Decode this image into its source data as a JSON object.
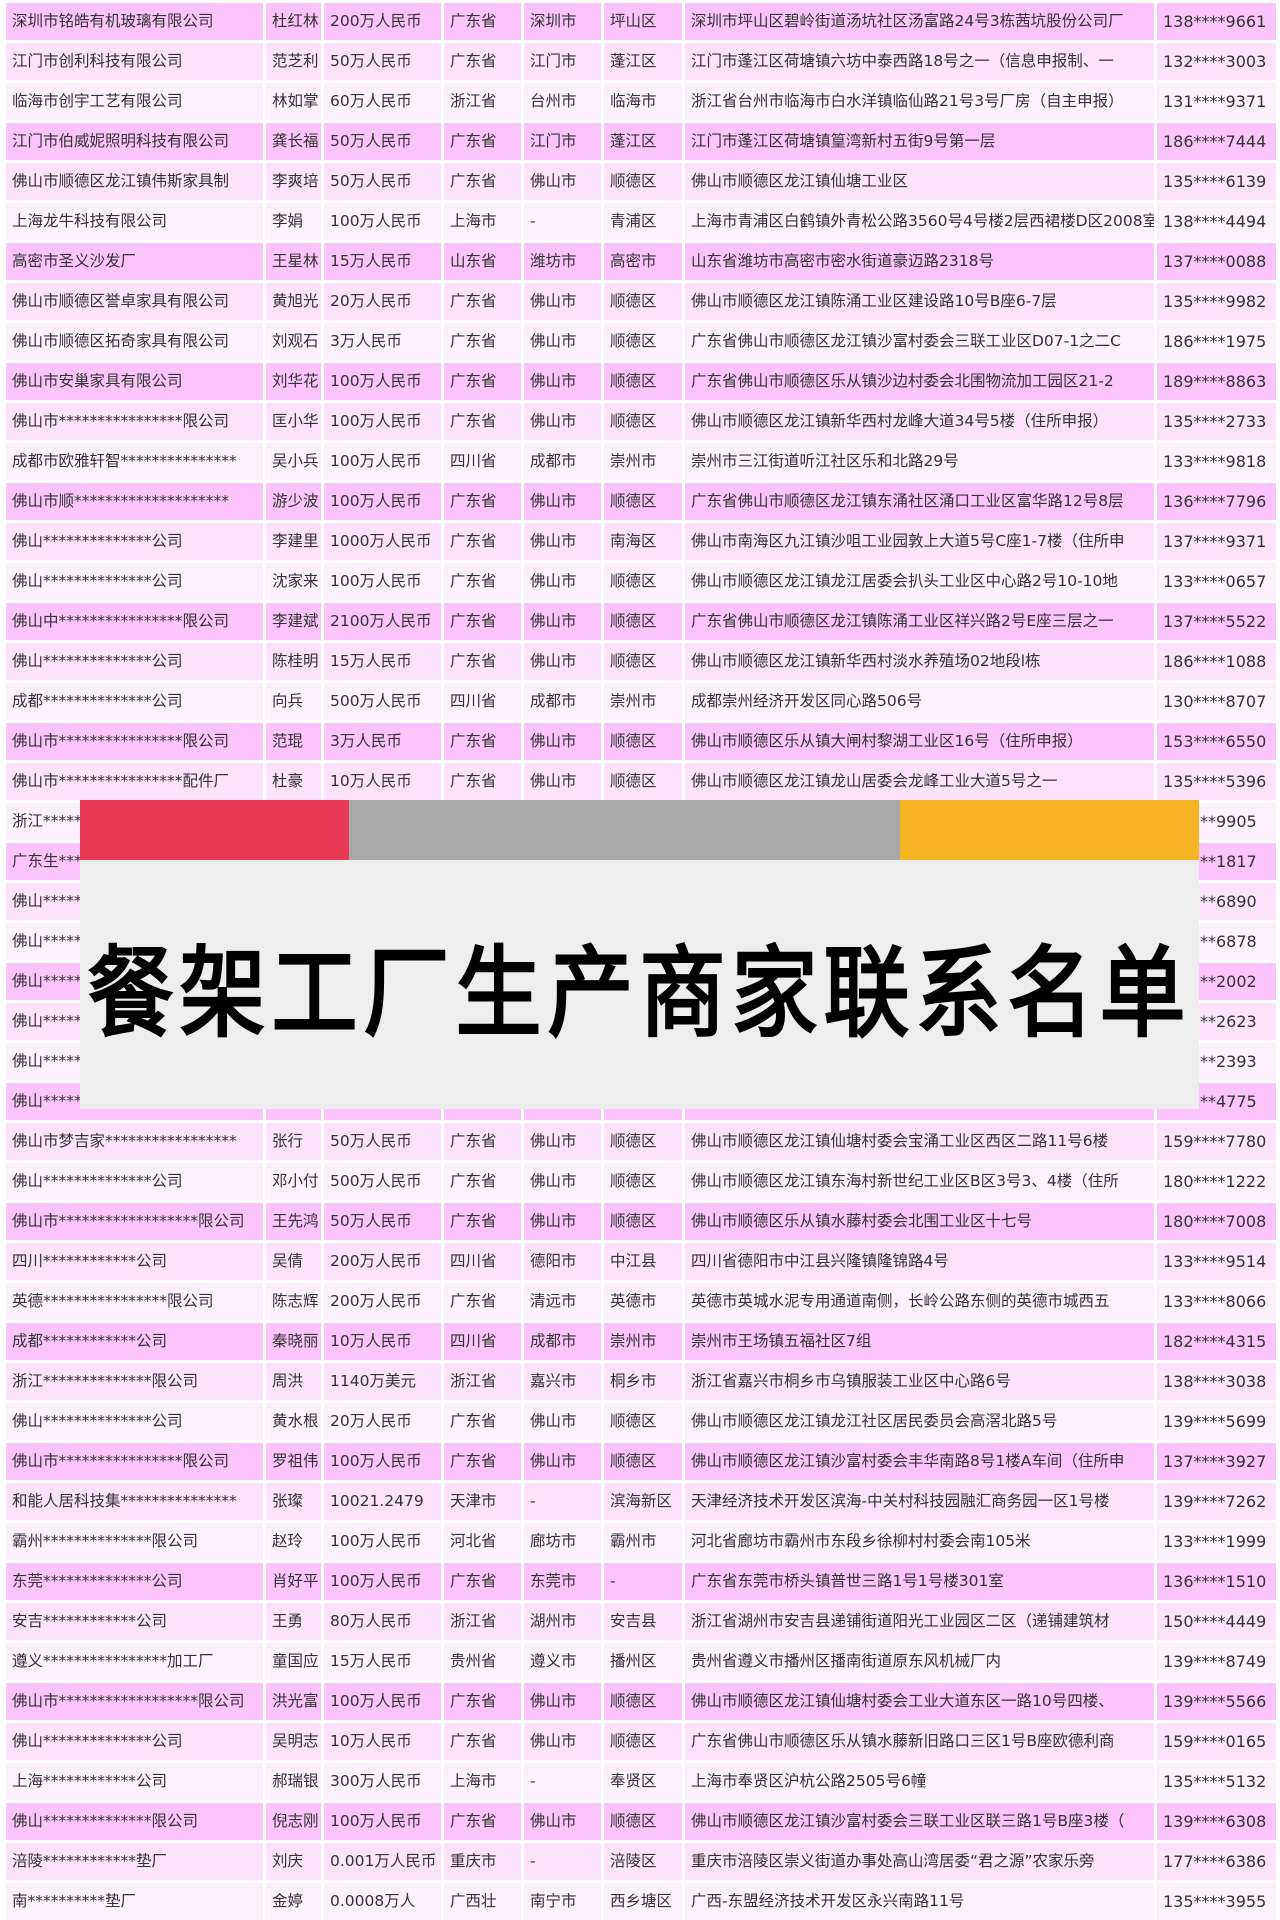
{
  "colors": {
    "row_dark": "#fcc4fc",
    "row_mid": "#fde2fb",
    "row_light": "#fdf0fd",
    "banner_red": "#e83a55",
    "banner_gray": "#a8a8a8",
    "banner_yellow": "#f6b425",
    "banner_box": "#eeeeee"
  },
  "banner": {
    "title": "餐架工厂生产商家联系名单"
  },
  "rows": [
    [
      "深圳市铭皓有机玻璃有限公司",
      "杜红林",
      "200万人民币",
      "广东省",
      "深圳市",
      "坪山区",
      "深圳市坪山区碧岭街道汤坑社区汤富路24号3栋茜坑股份公司厂",
      "138****9661"
    ],
    [
      "江门市创利科技有限公司",
      "范芝利",
      "50万人民币",
      "广东省",
      "江门市",
      "蓬江区",
      "江门市蓬江区荷塘镇六坊中泰西路18号之一（信息申报制、一",
      "132****3003"
    ],
    [
      "临海市创宇工艺有限公司",
      "林如掌",
      "60万人民币",
      "浙江省",
      "台州市",
      "临海市",
      "浙江省台州市临海市白水洋镇临仙路21号3号厂房（自主申报）",
      "131****9371"
    ],
    [
      "江门市伯威妮照明科技有限公司",
      "龚长福",
      "50万人民币",
      "广东省",
      "江门市",
      "蓬江区",
      "江门市蓬江区荷塘镇篁湾新村五街9号第一层",
      "186****7444"
    ],
    [
      "佛山市顺德区龙江镇伟斯家具制",
      "李爽培",
      "50万人民币",
      "广东省",
      "佛山市",
      "顺德区",
      "佛山市顺德区龙江镇仙塘工业区",
      "135****6139"
    ],
    [
      "上海龙牛科技有限公司",
      "李娟",
      "100万人民币",
      "上海市",
      "-",
      "青浦区",
      "上海市青浦区白鹤镇外青松公路3560号4号楼2层西裙楼D区2008室",
      "138****4494"
    ],
    [
      "高密市圣义沙发厂",
      "王星林",
      "15万人民币",
      "山东省",
      "潍坊市",
      "高密市",
      "山东省潍坊市高密市密水街道豪迈路2318号",
      "137****0088"
    ],
    [
      "佛山市顺德区誉卓家具有限公司",
      "黄旭光",
      "20万人民币",
      "广东省",
      "佛山市",
      "顺德区",
      "佛山市顺德区龙江镇陈涌工业区建设路10号B座6-7层",
      "135****9982"
    ],
    [
      "佛山市顺德区拓奇家具有限公司",
      "刘观石",
      "3万人民币",
      "广东省",
      "佛山市",
      "顺德区",
      "广东省佛山市顺德区龙江镇沙富村委会三联工业区D07-1之二C",
      "186****1975"
    ],
    [
      "佛山市安巢家具有限公司",
      "刘华花",
      "100万人民币",
      "广东省",
      "佛山市",
      "顺德区",
      "广东省佛山市顺德区乐从镇沙边村委会北围物流加工园区21-2",
      "189****8863"
    ],
    [
      "佛山市****************限公司",
      "匡小华",
      "100万人民币",
      "广东省",
      "佛山市",
      "顺德区",
      "佛山市顺德区龙江镇新华西村龙峰大道34号5楼（住所申报）",
      "135****2733"
    ],
    [
      "成都市欧雅轩智***************",
      "吴小兵",
      "100万人民币",
      "四川省",
      "成都市",
      "崇州市",
      "崇州市三江街道听江社区乐和北路29号",
      "133****9818"
    ],
    [
      "佛山市顺********************",
      "游少波",
      "100万人民币",
      "广东省",
      "佛山市",
      "顺德区",
      "广东省佛山市顺德区龙江镇东涌社区涌口工业区富华路12号8层",
      "136****7796"
    ],
    [
      "佛山**************公司",
      "李建里",
      "1000万人民币",
      "广东省",
      "佛山市",
      "南海区",
      "佛山市南海区九江镇沙咀工业园敦上大道5号C座1-7楼（住所申",
      "137****9371"
    ],
    [
      "佛山**************公司",
      "沈家来",
      "100万人民币",
      "广东省",
      "佛山市",
      "顺德区",
      "佛山市顺德区龙江镇龙江居委会扒头工业区中心路2号10-10地",
      "133****0657"
    ],
    [
      "佛山中****************限公司",
      "李建斌",
      "2100万人民币",
      "广东省",
      "佛山市",
      "顺德区",
      "广东省佛山市顺德区龙江镇陈涌工业区祥兴路2号E座三层之一",
      "137****5522"
    ],
    [
      "佛山**************公司",
      "陈桂明",
      "15万人民币",
      "广东省",
      "佛山市",
      "顺德区",
      "佛山市顺德区龙江镇新华西村淡水养殖场02地段l栋",
      "186****1088"
    ],
    [
      "成都**************公司",
      "向兵",
      "500万人民币",
      "四川省",
      "成都市",
      "崇州市",
      "成都崇州经济开发区同心路506号",
      "130****8707"
    ],
    [
      "佛山市****************限公司",
      "范琨",
      "3万人民币",
      "广东省",
      "佛山市",
      "顺德区",
      "佛山市顺德区乐从镇大闸村黎湖工业区16号（住所申报）",
      "153****6550"
    ],
    [
      "佛山市****************配件厂",
      "杜豪",
      "10万人民币",
      "广东省",
      "佛山市",
      "顺德区",
      "佛山市顺德区龙江镇龙山居委会龙峰工业大道5号之一",
      "135****5396"
    ],
    [
      "浙江*****",
      "",
      "",
      "",
      "",
      "",
      "",
      "**9905"
    ],
    [
      "广东生***",
      "",
      "",
      "",
      "",
      "",
      "",
      "**1817"
    ],
    [
      "佛山*****",
      "",
      "",
      "",
      "",
      "",
      "",
      "**6890"
    ],
    [
      "佛山*****",
      "",
      "",
      "",
      "",
      "",
      "",
      "**6878"
    ],
    [
      "佛山*****",
      "",
      "",
      "",
      "",
      "",
      "",
      "**2002"
    ],
    [
      "佛山*****",
      "",
      "",
      "",
      "",
      "",
      "",
      "**2623"
    ],
    [
      "佛山*****",
      "",
      "",
      "",
      "",
      "",
      "",
      "**2393"
    ],
    [
      "佛山*****",
      "",
      "",
      "",
      "",
      "",
      "",
      "**4775"
    ],
    [
      "佛山市梦吉家*****************",
      "张行",
      "50万人民币",
      "广东省",
      "佛山市",
      "顺德区",
      "佛山市顺德区龙江镇仙塘村委会宝涌工业区西区二路11号6楼",
      "159****7780"
    ],
    [
      "佛山**************公司",
      "邓小付",
      "500万人民币",
      "广东省",
      "佛山市",
      "顺德区",
      "佛山市顺德区龙江镇东海村新世纪工业区B区3号3、4楼（住所",
      "180****1222"
    ],
    [
      "佛山市******************限公司",
      "王先鸿",
      "50万人民币",
      "广东省",
      "佛山市",
      "顺德区",
      "佛山市顺德区乐从镇水藤村委会北围工业区十七号",
      "180****7008"
    ],
    [
      "四川************公司",
      "吴倩",
      "200万人民币",
      "四川省",
      "德阳市",
      "中江县",
      "四川省德阳市中江县兴隆镇隆锦路4号",
      "133****9514"
    ],
    [
      "英德****************限公司",
      "陈志辉",
      "200万人民币",
      "广东省",
      "清远市",
      "英德市",
      "英德市英城水泥专用通道南侧，长岭公路东侧的英德市城西五",
      "133****8066"
    ],
    [
      "成都************公司",
      "秦晓丽",
      "10万人民币",
      "四川省",
      "成都市",
      "崇州市",
      "崇州市王场镇五福社区7组",
      "182****4315"
    ],
    [
      "浙江**************限公司",
      "周洪",
      "1140万美元",
      "浙江省",
      "嘉兴市",
      "桐乡市",
      "浙江省嘉兴市桐乡市乌镇服装工业区中心路6号",
      "138****3038"
    ],
    [
      "佛山**************公司",
      "黄水根",
      "20万人民币",
      "广东省",
      "佛山市",
      "顺德区",
      "佛山市顺德区龙江镇龙江社区居民委员会高滘北路5号",
      "139****5699"
    ],
    [
      "佛山市****************限公司",
      "罗祖伟",
      "100万人民币",
      "广东省",
      "佛山市",
      "顺德区",
      "佛山市顺德区龙江镇沙富村委会丰华南路8号1楼A车间（住所申",
      "137****3927"
    ],
    [
      "和能人居科技集***************",
      "张璨",
      "10021.2479",
      "天津市",
      "-",
      "滨海新区",
      "天津经济技术开发区滨海-中关村科技园融汇商务园一区1号楼",
      "139****7262"
    ],
    [
      "霸州**************限公司",
      "赵玲",
      "100万人民币",
      "河北省",
      "廊坊市",
      "霸州市",
      "河北省廊坊市霸州市东段乡徐柳村村委会南105米",
      "133****1999"
    ],
    [
      "东莞**************公司",
      "肖好平",
      "100万人民币",
      "广东省",
      "东莞市",
      "-",
      "广东省东莞市桥头镇普世三路1号1号楼301室",
      "136****1510"
    ],
    [
      "安吉************公司",
      "王勇",
      "80万人民币",
      "浙江省",
      "湖州市",
      "安吉县",
      "浙江省湖州市安吉县递铺街道阳光工业园区二区（递铺建筑材",
      "150****4449"
    ],
    [
      "遵义****************加工厂",
      "童国应",
      "15万人民币",
      "贵州省",
      "遵义市",
      "播州区",
      "贵州省遵义市播州区播南街道原东风机械厂内",
      "139****8749"
    ],
    [
      "佛山市******************限公司",
      "洪光富",
      "100万人民币",
      "广东省",
      "佛山市",
      "顺德区",
      "佛山市顺德区龙江镇仙塘村委会工业大道东区一路10号四楼、",
      "139****5566"
    ],
    [
      "佛山**************公司",
      "吴明志",
      "10万人民币",
      "广东省",
      "佛山市",
      "顺德区",
      "广东省佛山市顺德区乐从镇水藤新旧路口三区1号B座欧德利商",
      "159****0165"
    ],
    [
      "上海************公司",
      "郝瑞银",
      "300万人民币",
      "上海市",
      "-",
      "奉贤区",
      "上海市奉贤区沪杭公路2505号6幢",
      "135****5132"
    ],
    [
      "佛山**************限公司",
      "倪志刚",
      "100万人民币",
      "广东省",
      "佛山市",
      "顺德区",
      "佛山市顺德区龙江镇沙富村委会三联工业区联三路1号B座3楼（",
      "139****6308"
    ],
    [
      "涪陵************垫厂",
      "刘庆",
      "0.001万人民币",
      "重庆市",
      "-",
      "涪陵区",
      "重庆市涪陵区崇义街道办事处高山湾居委“君之源”农家乐旁",
      "177****6386"
    ],
    [
      "南**********垫厂",
      "金婷",
      "0.0008万人",
      "广西壮",
      "南宁市",
      "西乡塘区",
      "广西-东盟经济技术开发区永兴南路11号",
      "135****3955"
    ]
  ]
}
